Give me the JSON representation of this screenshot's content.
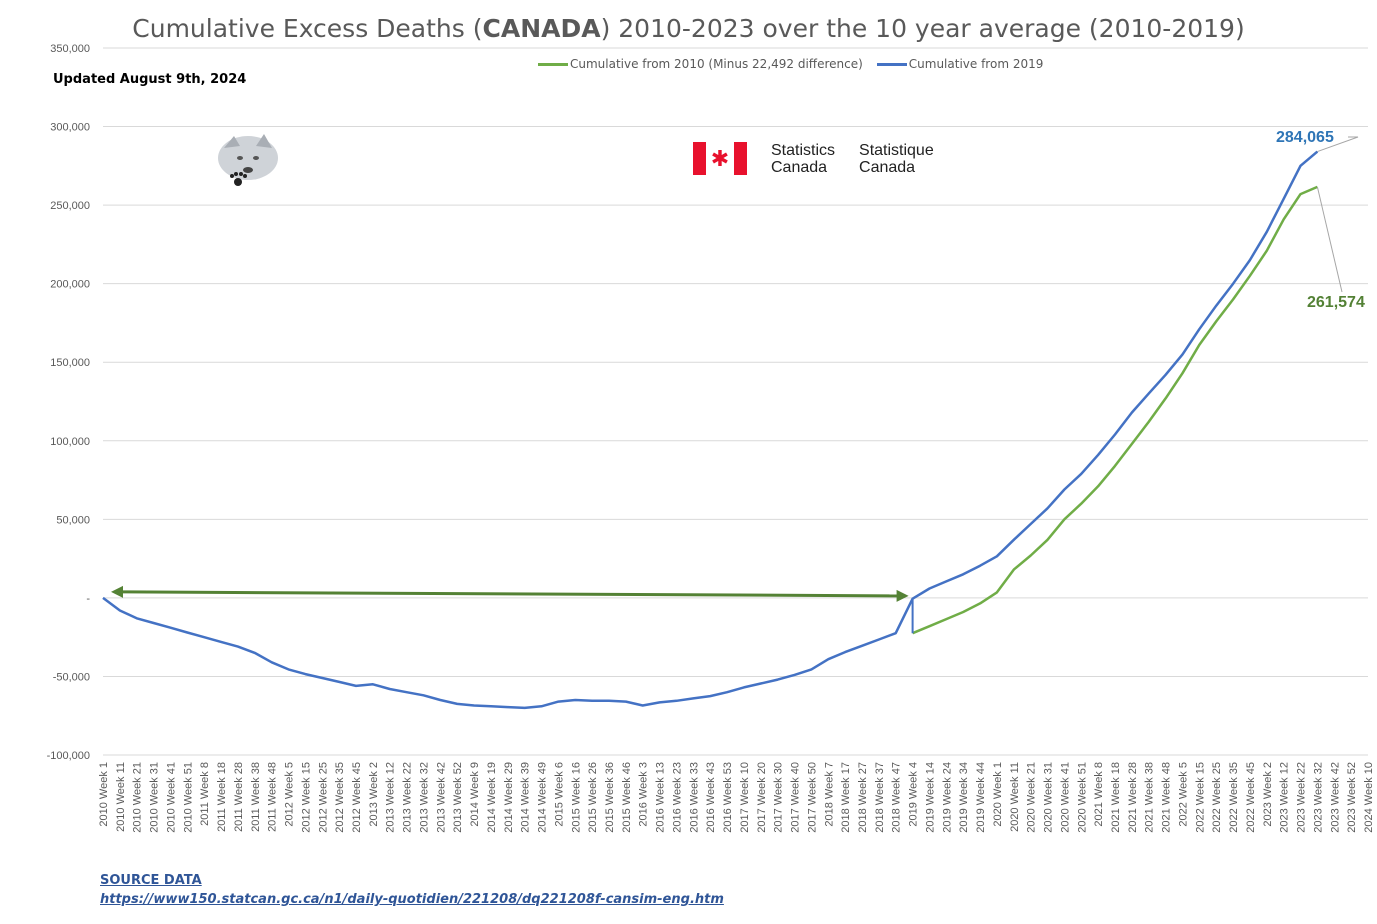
{
  "title_pre": "Cumulative Excess Deaths (",
  "title_bold": "CANADA",
  "title_post": ") 2010-2023 over the 10 year average (2010-2019)",
  "updated": "Updated August 9th, 2024",
  "statcan": {
    "en1": "Statistics",
    "en2": "Canada",
    "fr1": "Statistique",
    "fr2": "Canada",
    "flag_icon": "maple-leaf-icon"
  },
  "source": {
    "label": "SOURCE DATA",
    "url": "https://www150.statcan.gc.ca/n1/daily-quotidien/221208/dq221208f-cansim-eng.htm"
  },
  "annotations": {
    "blue_end": "284,065",
    "green_end": "261,574"
  },
  "colors": {
    "blue": "#4472c4",
    "green": "#70ad47",
    "green_dark": "#548235",
    "grid": "#d9d9d9",
    "text": "#595959"
  },
  "chart_data": {
    "type": "line",
    "title": "Cumulative Excess Deaths (CANADA) 2010-2023 over the 10 year average (2010-2019)",
    "xlabel": "",
    "ylabel": "",
    "ylim": [
      -100000,
      350000
    ],
    "yticks": [
      350000,
      300000,
      250000,
      200000,
      150000,
      100000,
      50000,
      0,
      -50000,
      -100000
    ],
    "ytick_labels": [
      "350,000",
      "300,000",
      "250,000",
      "200,000",
      "150,000",
      "100,000",
      "50,000",
      "-",
      "-50,000",
      "-100,000"
    ],
    "grid": true,
    "legend_position": "top",
    "x_tick_labels": [
      "2010 Week 1",
      "2010 Week 11",
      "2010 Week 21",
      "2010 Week 31",
      "2010 Week 41",
      "2010 Week 51",
      "2011 Week 8",
      "2011 Week 18",
      "2011 Week 28",
      "2011 Week 38",
      "2011 Week 48",
      "2012 Week 5",
      "2012 Week 15",
      "2012 Week 25",
      "2012 Week 35",
      "2012 Week 45",
      "2013 Week 2",
      "2013 Week 12",
      "2013 Week 22",
      "2013 Week 32",
      "2013 Week 42",
      "2013 Week 52",
      "2014 Week 9",
      "2014 Week 19",
      "2014 Week 29",
      "2014 Week 39",
      "2014 Week 49",
      "2015 Week 6",
      "2015 Week 16",
      "2015 Week 26",
      "2015 Week 36",
      "2015 Week 46",
      "2016 Week 3",
      "2016 Week 13",
      "2016 Week 23",
      "2016 Week 33",
      "2016 Week 43",
      "2016 Week 53",
      "2017 Week 10",
      "2017 Week 20",
      "2017 Week 30",
      "2017 Week 40",
      "2017 Week 50",
      "2018 Week 7",
      "2018 Week 17",
      "2018 Week 27",
      "2018 Week 37",
      "2018 Week 47",
      "2019 Week 4",
      "2019 Week 14",
      "2019 Week 24",
      "2019 Week 34",
      "2019 Week 44",
      "2020 Week 1",
      "2020 Week 11",
      "2020 Week 21",
      "2020 Week 31",
      "2020 Week 41",
      "2020 Week 51",
      "2021 Week 8",
      "2021 Week 18",
      "2021 Week 28",
      "2021 Week 38",
      "2021 Week 48",
      "2022 Week 5",
      "2022 Week 15",
      "2022 Week 25",
      "2022 Week 35",
      "2022 Week 45",
      "2023 Week 2",
      "2023 Week 12",
      "2023 Week 22",
      "2023 Week 32",
      "2023 Week 42",
      "2023 Week 52",
      "2024 Week 10"
    ],
    "series": [
      {
        "name": "Cumulative from 2010 (Minus 22,492 difference)",
        "color": "#70ad47",
        "start_index": 48,
        "values": [
          -22492,
          -18000,
          -13500,
          -9000,
          -3500,
          3500,
          18000,
          27000,
          37000,
          50000,
          60000,
          71000,
          84000,
          98000,
          112000,
          127000,
          143000,
          161000,
          176000,
          190000,
          205000,
          221000,
          241000,
          257000,
          261574
        ]
      },
      {
        "name": "Cumulative from 2019",
        "color": "#4472c4",
        "start_index": 0,
        "values": [
          0,
          -8000,
          -13000,
          -16000,
          -19000,
          -22000,
          -25000,
          -28000,
          -31000,
          -35000,
          -41000,
          -45500,
          -48500,
          -51000,
          -53500,
          -56000,
          -55000,
          -58000,
          -60000,
          -62000,
          -65000,
          -67500,
          -68500,
          -69000,
          -69500,
          -70000,
          -69000,
          -66000,
          -65000,
          -65500,
          -65500,
          -66000,
          -68500,
          -66500,
          -65500,
          -64000,
          -62500,
          -60000,
          -57000,
          -54500,
          -52000,
          -49000,
          -45500,
          -39000,
          -34500,
          -30500,
          -26500,
          -22500,
          -500,
          6000,
          10500,
          15000,
          20500,
          26500,
          37000,
          47000,
          57000,
          69000,
          79000,
          91000,
          104000,
          118000,
          130000,
          142000,
          155000,
          171000,
          186000,
          200000,
          215000,
          233000,
          254000,
          275000,
          284065
        ]
      }
    ]
  }
}
